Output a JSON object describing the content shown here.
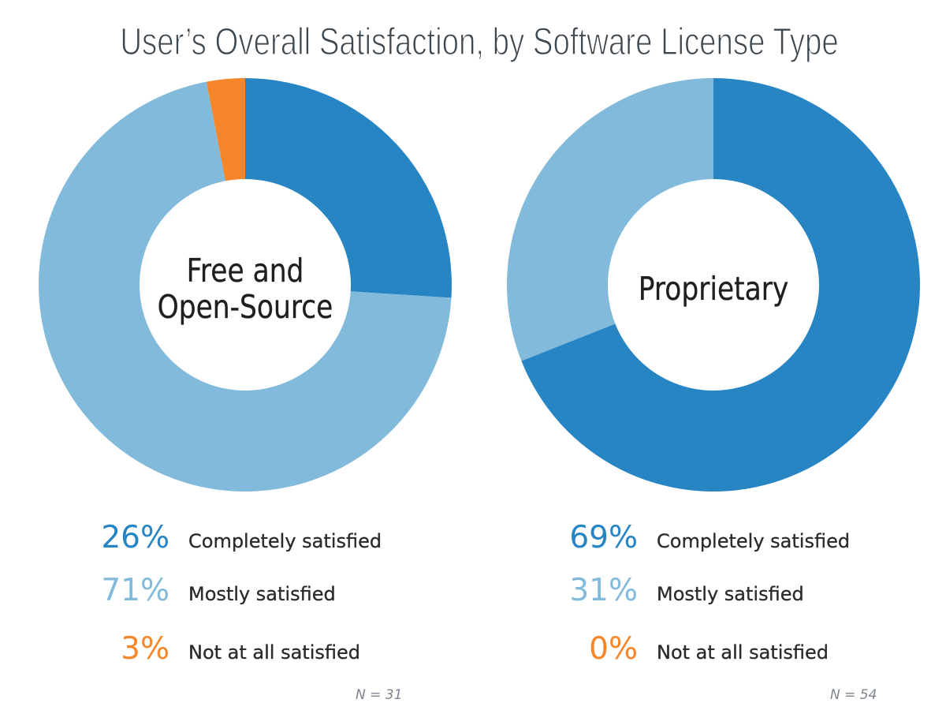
{
  "title": "User’s Overall Satisfaction, by Software License Type",
  "colors": {
    "completely_satisfied": "#2785c4",
    "mostly_satisfied": "#82badb",
    "not_at_all_satisfied": "#f6862a",
    "title_text": "#3e464e",
    "legend_label_text": "#2b2b2b",
    "center_label_text": "#1f1f1f",
    "n_label_text": "#7e848d"
  },
  "chart_data": [
    {
      "type": "pie",
      "style": "donut",
      "center_label": [
        "Free and",
        "Open-Source"
      ],
      "categories": [
        "Completely satisfied",
        "Mostly satisfied",
        "Not at all satisfied"
      ],
      "values": [
        26,
        71,
        3
      ],
      "unit": "%",
      "n_label": "N = 31"
    },
    {
      "type": "pie",
      "style": "donut",
      "center_label": [
        "Proprietary"
      ],
      "categories": [
        "Completely satisfied",
        "Mostly satisfied",
        "Not at all satisfied"
      ],
      "values": [
        69,
        31,
        0
      ],
      "unit": "%",
      "n_label": "N = 54"
    }
  ]
}
